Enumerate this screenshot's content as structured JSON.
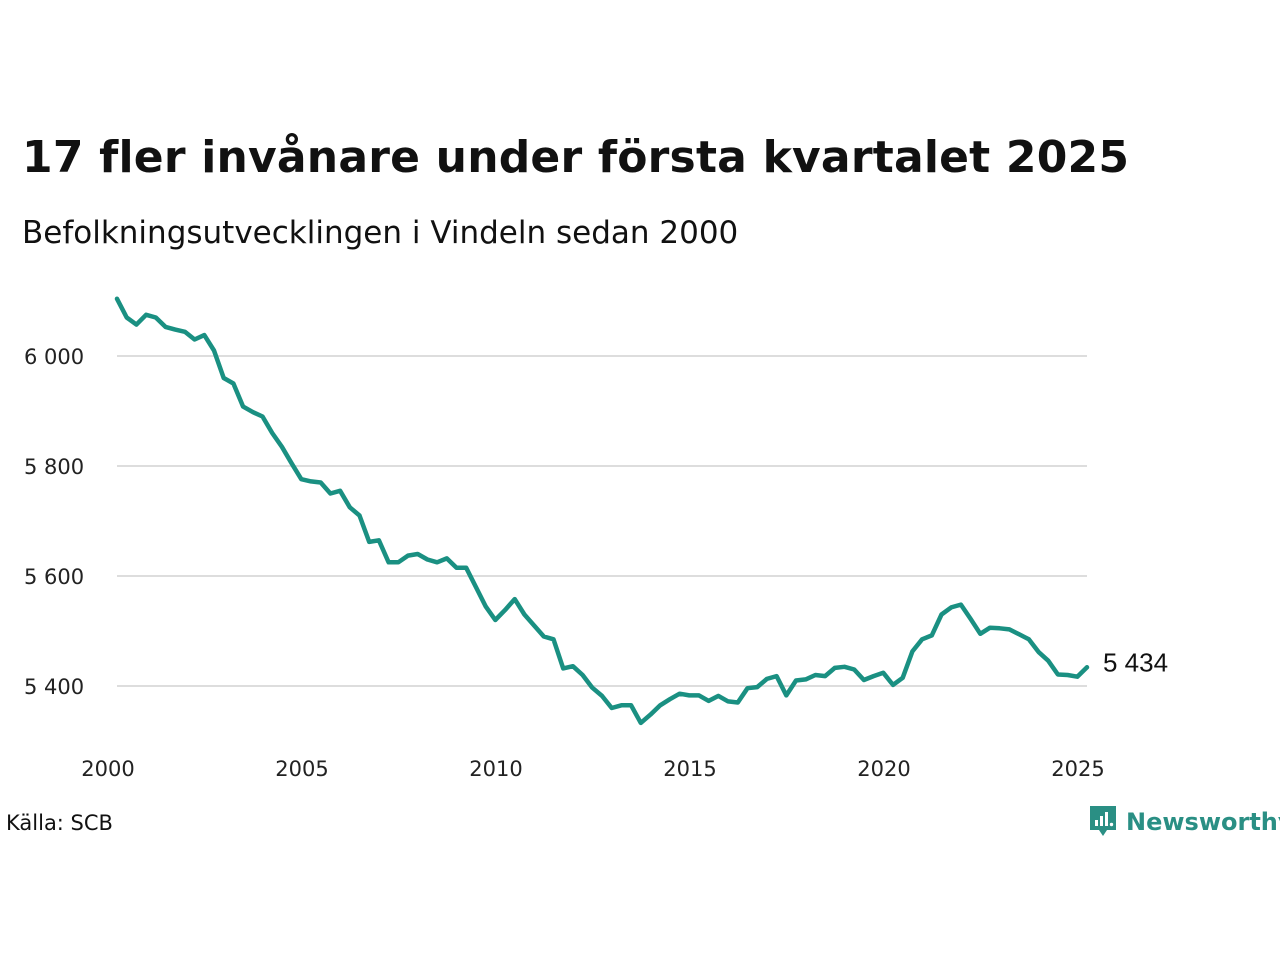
{
  "header": {
    "title": "17 fler invånare under första kvartalet 2025",
    "subtitle": "Befolkningsutvecklingen i Vindeln sedan 2000"
  },
  "footer": {
    "source": "Källa: SCB",
    "brand": "Newsworthy",
    "brand_icon": "newsworthy-logo-icon"
  },
  "colors": {
    "line": "#1a9082",
    "grid": "#dddddd",
    "brand": "#2a8f84"
  },
  "chart_data": {
    "type": "line",
    "x": [
      2000.0,
      2000.25,
      2000.5,
      2000.75,
      2001.0,
      2001.25,
      2001.5,
      2001.75,
      2002.0,
      2002.25,
      2002.5,
      2002.75,
      2003.0,
      2003.25,
      2003.5,
      2003.75,
      2004.0,
      2004.25,
      2004.5,
      2004.75,
      2005.0,
      2005.25,
      2005.5,
      2005.75,
      2006.0,
      2006.25,
      2006.5,
      2006.75,
      2007.0,
      2007.25,
      2007.5,
      2007.75,
      2008.0,
      2008.25,
      2008.5,
      2008.75,
      2009.0,
      2009.25,
      2009.5,
      2009.75,
      2010.0,
      2010.25,
      2010.5,
      2010.75,
      2011.0,
      2011.25,
      2011.5,
      2011.75,
      2012.0,
      2012.25,
      2012.5,
      2012.75,
      2013.0,
      2013.25,
      2013.5,
      2013.75,
      2014.0,
      2014.25,
      2014.5,
      2014.75,
      2015.0,
      2015.25,
      2015.5,
      2015.75,
      2016.0,
      2016.25,
      2016.5,
      2016.75,
      2017.0,
      2017.25,
      2017.5,
      2017.75,
      2018.0,
      2018.25,
      2018.5,
      2018.75,
      2019.0,
      2019.25,
      2019.5,
      2019.75,
      2020.0,
      2020.25,
      2020.5,
      2020.75,
      2021.0,
      2021.25,
      2021.5,
      2021.75,
      2022.0,
      2022.25,
      2022.5,
      2022.75,
      2023.0,
      2023.25,
      2023.5,
      2023.75,
      2024.0,
      2024.25,
      2024.5,
      2024.75,
      2025.0
    ],
    "values": [
      6104,
      6070,
      6057,
      6075,
      6070,
      6053,
      6048,
      6044,
      6030,
      6038,
      6010,
      5960,
      5950,
      5908,
      5898,
      5890,
      5860,
      5835,
      5805,
      5776,
      5772,
      5770,
      5750,
      5755,
      5725,
      5710,
      5662,
      5665,
      5625,
      5625,
      5637,
      5640,
      5630,
      5625,
      5632,
      5615,
      5615,
      5580,
      5545,
      5520,
      5538,
      5558,
      5530,
      5510,
      5490,
      5485,
      5432,
      5436,
      5420,
      5397,
      5382,
      5360,
      5365,
      5365,
      5333,
      5348,
      5365,
      5376,
      5386,
      5383,
      5383,
      5373,
      5382,
      5372,
      5370,
      5396,
      5398,
      5413,
      5418,
      5383,
      5410,
      5412,
      5420,
      5418,
      5433,
      5435,
      5430,
      5411,
      5418,
      5424,
      5402,
      5415,
      5463,
      5485,
      5492,
      5530,
      5543,
      5548,
      5522,
      5495,
      5506,
      5505,
      5503,
      5494,
      5485,
      5462,
      5446,
      5421,
      5420,
      5417,
      5434
    ],
    "title": "17 fler invånare under första kvartalet 2025",
    "subtitle": "Befolkningsutvecklingen i Vindeln sedan 2000",
    "ylim": [
      5290,
      6110
    ],
    "xlim": [
      2000,
      2025
    ],
    "yticks": [
      5400,
      5600,
      5800,
      6000
    ],
    "ytick_labels": [
      "5 400",
      "5 600",
      "5 800",
      "6 000"
    ],
    "xticks": [
      2000,
      2005,
      2010,
      2015,
      2020,
      2025
    ],
    "xtick_labels": [
      "2000",
      "2005",
      "2010",
      "2015",
      "2020",
      "2025"
    ],
    "end_label": "5 434",
    "grid": true,
    "legend": "none"
  }
}
